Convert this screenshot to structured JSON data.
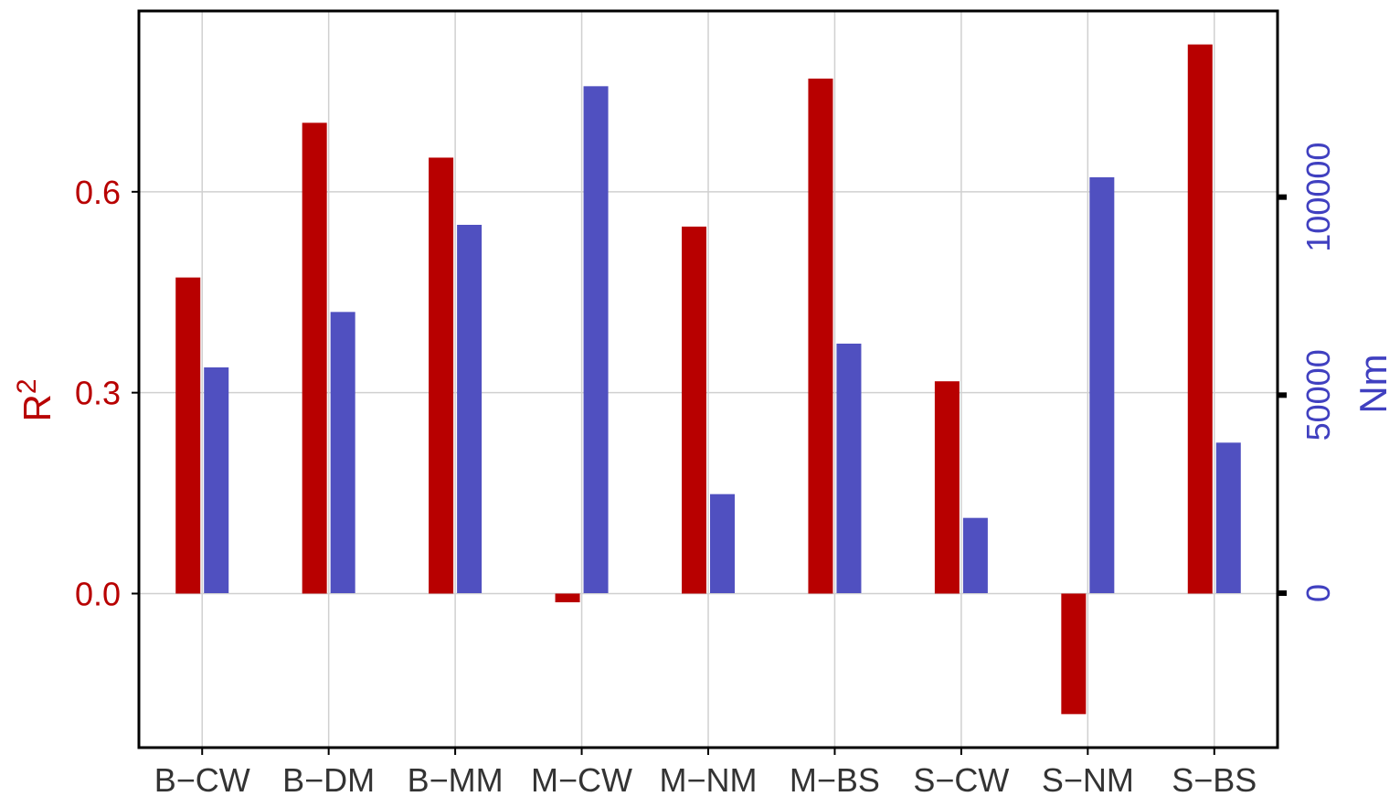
{
  "chart_data": {
    "type": "bar",
    "categories": [
      "B−CW",
      "B−DM",
      "B−MM",
      "M−CW",
      "M−NM",
      "M−BS",
      "S−CW",
      "S−NM",
      "S−BS"
    ],
    "series": [
      {
        "axis": "left",
        "color": "#b80000",
        "values": [
          0.472,
          0.703,
          0.651,
          -0.013,
          0.548,
          0.769,
          0.317,
          -0.18,
          0.82
        ]
      },
      {
        "axis": "right",
        "color": "#5050c0",
        "values": [
          57000,
          71000,
          93000,
          128000,
          25000,
          63000,
          19000,
          105000,
          38000
        ]
      }
    ],
    "y_left": {
      "label": "R",
      "label_superscript": "2",
      "ticks": [
        0.0,
        0.3,
        0.6
      ],
      "tick_labels": [
        "0.0",
        "0.3",
        "0.6"
      ],
      "range": [
        -0.23,
        0.87
      ],
      "color": "#b80000"
    },
    "y_right": {
      "label": "Nm",
      "ticks": [
        0,
        50000,
        100000
      ],
      "tick_labels": [
        "0",
        "50000",
        "100000"
      ],
      "range": [
        -39000,
        147000
      ],
      "color": "#4040c0"
    },
    "grid": true
  }
}
